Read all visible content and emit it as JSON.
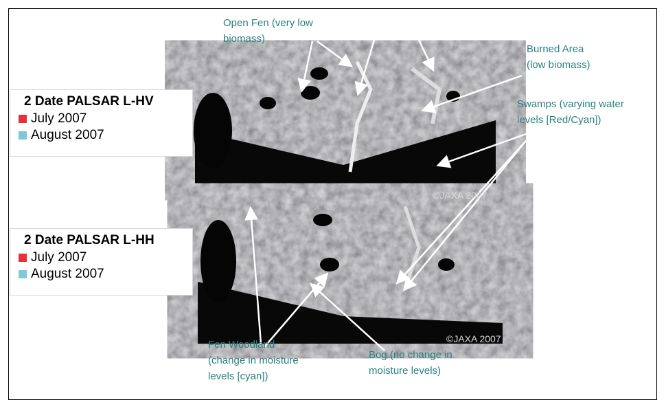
{
  "legends": [
    {
      "title": "2 Date PALSAR L-HV",
      "items": [
        "July 2007",
        "August 2007"
      ]
    },
    {
      "title": "2 Date PALSAR L-HH",
      "items": [
        "July 2007",
        "August 2007"
      ]
    }
  ],
  "annotations": [
    {
      "lines": [
        "Open Fen (very low",
        "biomass)"
      ]
    },
    {
      "lines": [
        "Burned Area",
        "(low biomass)"
      ]
    },
    {
      "lines": [
        "Swamps (varying water",
        "levels [Red/Cyan])"
      ]
    },
    {
      "lines": [
        "Fen Woodland",
        "(change in moisture",
        "levels [cyan])"
      ]
    },
    {
      "lines": [
        "Bog (no change in",
        "moisture levels)"
      ]
    }
  ],
  "watermarks": [
    "©JAXA 2007",
    "©JAXA 2007"
  ]
}
